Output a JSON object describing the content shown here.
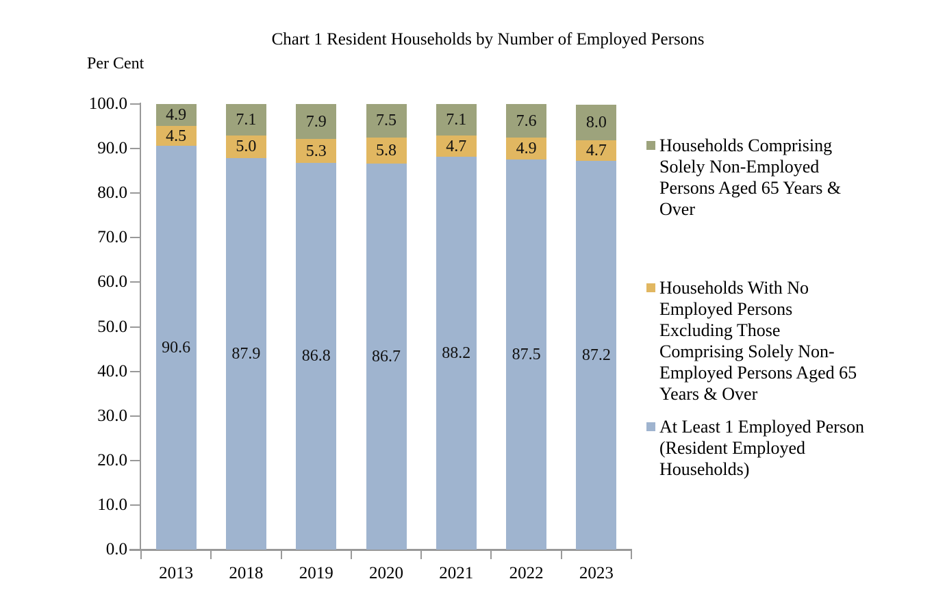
{
  "title": "Chart 1 Resident Households by Number of Employed Persons",
  "y_axis_title": "Per Cent",
  "chart_data": {
    "type": "bar",
    "stacked": true,
    "title": "Chart 1 Resident Households by Number of Employed Persons",
    "ylabel": "Per Cent",
    "xlabel": "",
    "ylim": [
      0,
      100
    ],
    "grid": false,
    "legend_position": "right",
    "categories": [
      "2013",
      "2018",
      "2019",
      "2020",
      "2021",
      "2022",
      "2023"
    ],
    "y_ticks": [
      "0.0",
      "10.0",
      "20.0",
      "30.0",
      "40.0",
      "50.0",
      "60.0",
      "70.0",
      "80.0",
      "90.0",
      "100.0"
    ],
    "series": [
      {
        "name": "At Least 1 Employed Person (Resident Employed Households)",
        "color": "#9FB4CF",
        "values": [
          90.6,
          87.9,
          86.8,
          86.7,
          88.2,
          87.5,
          87.2
        ]
      },
      {
        "name": "Households With No Employed Persons Excluding Those Comprising Solely Non-Employed Persons Aged 65 Years & Over",
        "color": "#E1B761",
        "values": [
          4.5,
          5.0,
          5.3,
          5.8,
          4.7,
          4.9,
          4.7
        ]
      },
      {
        "name": "Households Comprising Solely Non-Employed Persons Aged 65 Years & Over",
        "color": "#9DA37C",
        "values": [
          4.9,
          7.1,
          7.9,
          7.5,
          7.1,
          7.6,
          8.0
        ]
      }
    ],
    "legend_order_top_to_bottom": [
      "Households Comprising Solely Non-Employed Persons Aged 65 Years & Over",
      "Households With No Employed Persons Excluding Those Comprising Solely Non-Employed Persons Aged 65 Years & Over",
      "At Least 1 Employed Person (Resident Employed Households)"
    ]
  }
}
